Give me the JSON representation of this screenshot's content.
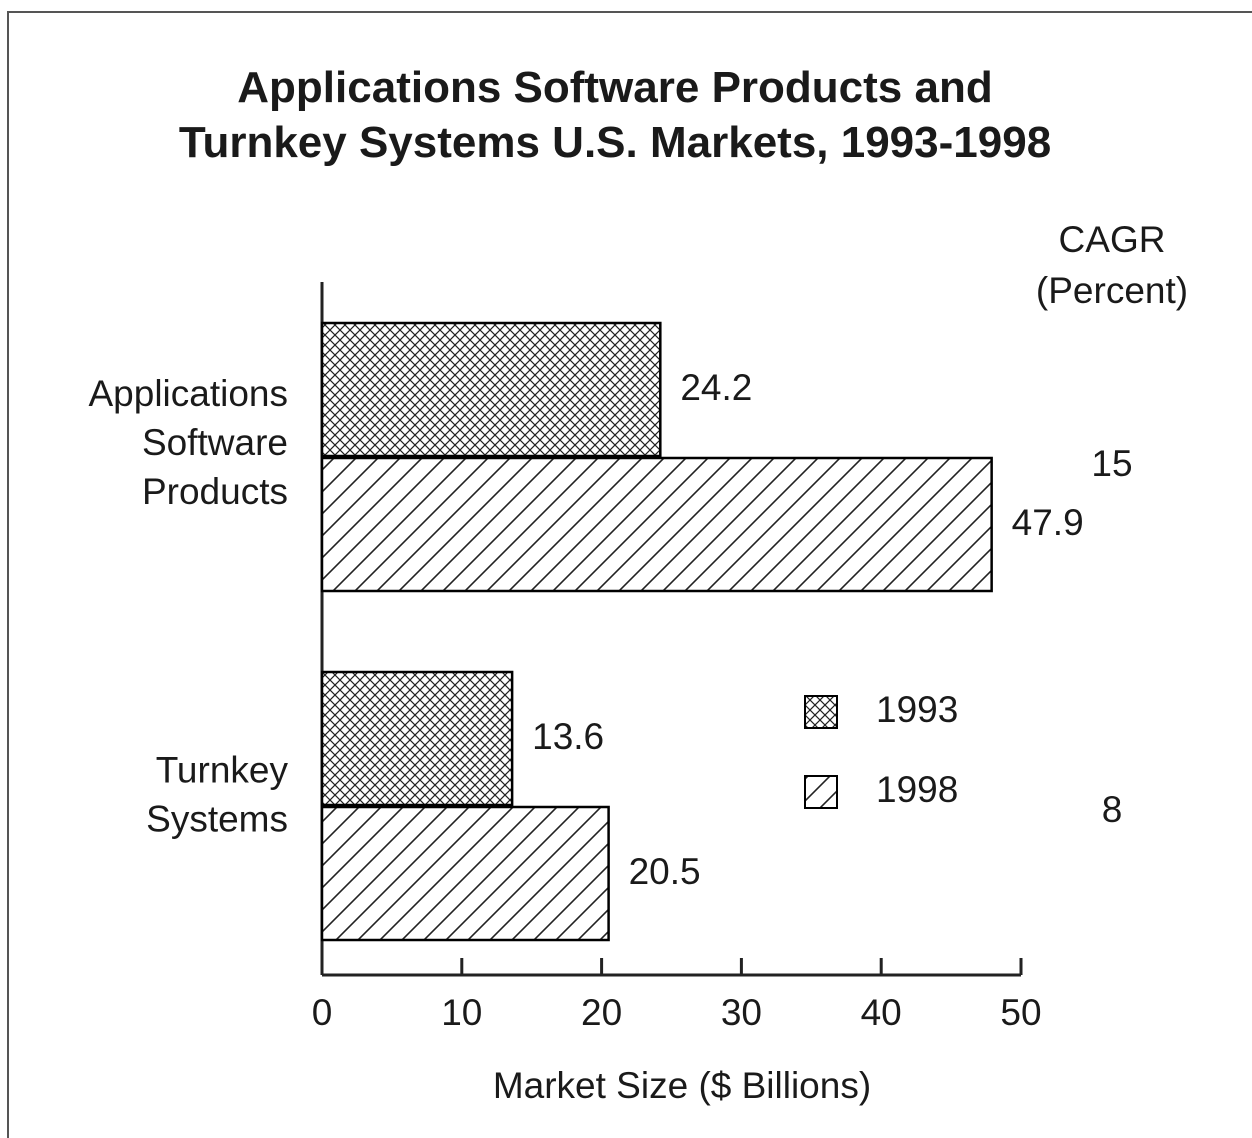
{
  "chart_data": {
    "type": "bar",
    "orientation": "horizontal",
    "title": "Applications Software Products and Turnkey Systems U.S. Markets, 1993-1998",
    "categories": [
      "Applications Software Products",
      "Turnkey Systems"
    ],
    "series": [
      {
        "name": "1993",
        "color": "#000000",
        "pattern": "crosshatch",
        "values": [
          24.2,
          13.6
        ]
      },
      {
        "name": "1998",
        "color": "#000000",
        "pattern": "diagonal",
        "values": [
          47.9,
          20.5
        ]
      }
    ],
    "cagr_title": "CAGR (Percent)",
    "cagr": [
      15,
      8
    ],
    "xlabel": "Market Size ($ Billions)",
    "xlim": [
      0,
      50
    ],
    "xticks": [
      0,
      10,
      20,
      30,
      40,
      50
    ],
    "grid": false
  }
}
